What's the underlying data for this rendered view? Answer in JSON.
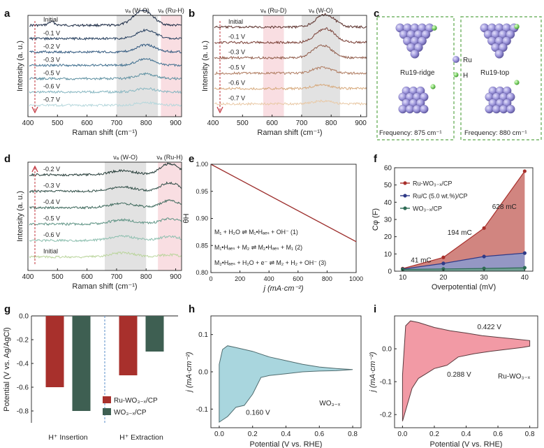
{
  "chart_data": [
    {
      "panel": "a",
      "type": "line",
      "xlabel": "Raman shift (cm⁻¹)",
      "ylabel": "Intensity (a. u.)",
      "xlim": [
        400,
        920
      ],
      "xticks": [
        "400",
        "500",
        "600",
        "700",
        "800",
        "900"
      ],
      "bands": [
        {
          "label": "νₐ (W-O)",
          "from": 700,
          "to": 840,
          "color": "#d8d8d8"
        },
        {
          "label": "νₐ (Ru-H)",
          "from": 850,
          "to": 920,
          "color": "#f7d3d8"
        }
      ],
      "series": [
        {
          "name": "Initial",
          "color": "#1b2a44",
          "peak": 790,
          "peak_h": 22
        },
        {
          "name": "-0.1 V",
          "color": "#27405f",
          "peak": 800,
          "peak_h": 12
        },
        {
          "name": "-0.2 V",
          "color": "#335a80",
          "peak": 800,
          "peak_h": 10
        },
        {
          "name": "-0.3 V",
          "color": "#3f6f8f",
          "peak": 800,
          "peak_h": 9
        },
        {
          "name": "-0.5 V",
          "color": "#5c8fa0",
          "peak": 800,
          "peak_h": 7
        },
        {
          "name": "-0.6 V",
          "color": "#86b6c1",
          "peak": 800,
          "peak_h": 5
        },
        {
          "name": "-0.7 V",
          "color": "#b5d7dc",
          "peak": 800,
          "peak_h": 4
        }
      ]
    },
    {
      "panel": "b",
      "type": "line",
      "xlabel": "Raman shift (cm⁻¹)",
      "ylabel": "Intensity (a. u.)",
      "xlim": [
        400,
        920
      ],
      "xticks": [
        "400",
        "500",
        "600",
        "700",
        "800",
        "900"
      ],
      "bands": [
        {
          "label": "νₐ (Ru-D)",
          "from": 570,
          "to": 640,
          "color": "#f7d3d8"
        },
        {
          "label": "νₐ (W-O)",
          "from": 700,
          "to": 830,
          "color": "#d8d8d8"
        }
      ],
      "series": [
        {
          "name": "Initial",
          "color": "#5a2f2a",
          "peak": 780,
          "peak_h": 18
        },
        {
          "name": "-0.1 V",
          "color": "#7a4037",
          "peak": 780,
          "peak_h": 20
        },
        {
          "name": "-0.3 V",
          "color": "#8f5a48",
          "peak": 770,
          "peak_h": 18
        },
        {
          "name": "-0.5 V",
          "color": "#b07d62",
          "peak": 770,
          "peak_h": 8
        },
        {
          "name": "-0.6 V",
          "color": "#d6a87a",
          "peak": 770,
          "peak_h": 5
        },
        {
          "name": "-0.7 V",
          "color": "#e9c9a6",
          "peak": 770,
          "peak_h": 4
        }
      ]
    },
    {
      "panel": "d",
      "type": "line",
      "xlabel": "Raman shift (cm⁻¹)",
      "ylabel": "Intensity (a. u.)",
      "xlim": [
        400,
        920
      ],
      "xticks": [
        "400",
        "500",
        "600",
        "700",
        "800",
        "900"
      ],
      "bands": [
        {
          "label": "νₐ (W-O)",
          "from": 660,
          "to": 800,
          "color": "#d8d8d8"
        },
        {
          "label": "νₐ (Ru-H)",
          "from": 840,
          "to": 920,
          "color": "#f7d3d8"
        }
      ],
      "series": [
        {
          "name": "-0.2 V",
          "color": "#233a36",
          "peak": 880,
          "peak_h": 16
        },
        {
          "name": "-0.3 V",
          "color": "#2f4d46",
          "peak": 880,
          "peak_h": 12
        },
        {
          "name": "-0.4 V",
          "color": "#3f6a5d",
          "peak": 880,
          "peak_h": 10
        },
        {
          "name": "-0.5 V",
          "color": "#5e9384",
          "peak": 880,
          "peak_h": 8
        },
        {
          "name": "-0.6 V",
          "color": "#8dbfaf",
          "peak": 880,
          "peak_h": 6
        },
        {
          "name": "Initial",
          "color": "#b9d49b",
          "peak": 880,
          "peak_h": 3
        }
      ]
    },
    {
      "panel": "e",
      "type": "line",
      "xlabel": "j (mA·cm⁻²)",
      "ylabel": "θH",
      "xlim": [
        0,
        1000
      ],
      "ylim": [
        0.8,
        1.0
      ],
      "xticks": [
        "0",
        "200",
        "400",
        "600",
        "800",
        "1000"
      ],
      "yticks": [
        "0.80",
        "0.85",
        "0.90",
        "0.95",
        "1.00"
      ],
      "x": [
        0,
        1000
      ],
      "y": [
        1.0,
        0.857
      ],
      "equations": [
        "M₁ + H₂O ⇌ M₁•Hₐₑₛ + OH⁻ (1)",
        "M₁•Hₐₑₛ + M₂ ⇌ M₂•Hₐₑₛ + M₁ (2)",
        "M₂•Hₐₑₛ + H₂O + e⁻ ⇌ M₂ + H₂ + OH⁻ (3)"
      ]
    },
    {
      "panel": "f",
      "type": "area",
      "xlabel": "Overpotential (mV)",
      "ylabel": "Cφ (F)",
      "xlim": [
        10,
        40
      ],
      "ylim": [
        0,
        60
      ],
      "xticks": [
        "10",
        "20",
        "30",
        "40"
      ],
      "yticks": [
        "0",
        "10",
        "20",
        "30",
        "40",
        "50",
        "60"
      ],
      "x": [
        10,
        20,
        30,
        40
      ],
      "series": [
        {
          "name": "Ru-WO₃₋ₓ/CP",
          "color": "#a8302c",
          "fill": "#c9706a",
          "values": [
            1.5,
            8,
            25,
            58
          ]
        },
        {
          "name": "Ru/C (5.0 wt.%)/CP",
          "color": "#2f3a87",
          "fill": "#8a9ad0",
          "values": [
            1.2,
            4.5,
            8.5,
            10.5
          ]
        },
        {
          "name": "WO₃₋ₓ/CP",
          "color": "#2e6b55",
          "fill": "#6aa08a",
          "values": [
            1.0,
            1.3,
            1.6,
            2.0
          ]
        }
      ],
      "annotations": [
        {
          "text": "628 mC",
          "x": 32,
          "y": 36
        },
        {
          "text": "194 mC",
          "x": 21,
          "y": 21
        },
        {
          "text": "41 mC",
          "x": 12,
          "y": 5
        }
      ]
    },
    {
      "panel": "g",
      "type": "bar",
      "ylabel": "Potential (V vs. Ag/AgCl)",
      "ylim": [
        -0.9,
        0.0
      ],
      "yticks": [
        "0.0",
        "-0.2",
        "-0.4",
        "-0.6",
        "-0.8"
      ],
      "categories": [
        "H⁺ Insertion",
        "H⁺ Extraction"
      ],
      "series": [
        {
          "name": "Ru-WO₃₋ₓ/CP",
          "color": "#a8302c",
          "values": [
            -0.6,
            -0.5
          ]
        },
        {
          "name": "WO₃₋ₓ/CP",
          "color": "#3e5f52",
          "values": [
            -0.8,
            -0.3
          ]
        }
      ]
    },
    {
      "panel": "h",
      "type": "area",
      "xlabel": "Potential (V vs. RHE)",
      "ylabel": "j (mA·cm⁻²)",
      "xlim": [
        -0.05,
        0.85
      ],
      "ylim": [
        -0.15,
        0.15
      ],
      "xticks": [
        "0.0",
        "0.2",
        "0.4",
        "0.6",
        "0.8"
      ],
      "yticks": [
        "-0.1",
        "0.0",
        "0.1"
      ],
      "fill": "#a9d6de",
      "stroke": "#4e6b6e",
      "upper": {
        "x": [
          0.0,
          0.02,
          0.05,
          0.1,
          0.2,
          0.3,
          0.4,
          0.5,
          0.6,
          0.7,
          0.8
        ],
        "y": [
          0.02,
          0.06,
          0.07,
          0.065,
          0.055,
          0.04,
          0.03,
          0.02,
          0.013,
          0.009,
          0.006
        ]
      },
      "lower": {
        "x": [
          0.0,
          0.05,
          0.1,
          0.15,
          0.2,
          0.25,
          0.3,
          0.4,
          0.5,
          0.6,
          0.7,
          0.8
        ],
        "y": [
          -0.135,
          -0.12,
          -0.095,
          -0.09,
          -0.06,
          -0.015,
          -0.01,
          -0.005,
          0.0,
          0.002,
          0.003,
          0.006
        ]
      },
      "annotations": [
        {
          "text": "0.160 V",
          "x": 0.16,
          "y": -0.115
        },
        {
          "text": "WO₃₋ₓ",
          "x": 0.6,
          "y": -0.09
        }
      ]
    },
    {
      "panel": "i",
      "type": "area",
      "xlabel": "Potential (V vs. RHE)",
      "ylabel": "j (mA·cm⁻²)",
      "xlim": [
        -0.05,
        0.85
      ],
      "ylim": [
        -0.24,
        0.1
      ],
      "xticks": [
        "0.0",
        "0.2",
        "0.4",
        "0.6",
        "0.8"
      ],
      "yticks": [
        "-0.2",
        "-0.1",
        "0.0"
      ],
      "fill": "#f29aa5",
      "stroke": "#5a3a3e",
      "upper": {
        "x": [
          0.0,
          0.02,
          0.05,
          0.1,
          0.2,
          0.3,
          0.4,
          0.5,
          0.6,
          0.7,
          0.8
        ],
        "y": [
          -0.08,
          0.07,
          0.085,
          0.08,
          0.065,
          0.055,
          0.048,
          0.04,
          0.035,
          0.03,
          0.025
        ]
      },
      "lower": {
        "x": [
          0.0,
          0.03,
          0.06,
          0.1,
          0.15,
          0.2,
          0.28,
          0.35,
          0.45,
          0.55,
          0.65,
          0.75,
          0.8
        ],
        "y": [
          -0.22,
          -0.17,
          -0.12,
          -0.09,
          -0.075,
          -0.06,
          -0.05,
          -0.025,
          -0.015,
          -0.008,
          -0.002,
          0.004,
          0.008
        ]
      },
      "annotations": [
        {
          "text": "0.422 V",
          "x": 0.47,
          "y": 0.06
        },
        {
          "text": "0.288 V",
          "x": 0.28,
          "y": -0.085
        },
        {
          "text": "Ru-WO₃₋ₓ",
          "x": 0.6,
          "y": -0.09
        }
      ]
    }
  ],
  "panel_c": {
    "structures": [
      "Ru19-ridge",
      "Ru19-top"
    ],
    "legend": [
      {
        "label": "Ru",
        "color": "#9a93d6"
      },
      {
        "label": "H",
        "color": "#7fd46a"
      }
    ],
    "frequencies": [
      "Frequency: 875 cm⁻¹",
      "Frequency: 880 cm⁻¹"
    ]
  },
  "panel_labels": [
    "a",
    "b",
    "c",
    "d",
    "e",
    "f",
    "g",
    "h",
    "i"
  ]
}
